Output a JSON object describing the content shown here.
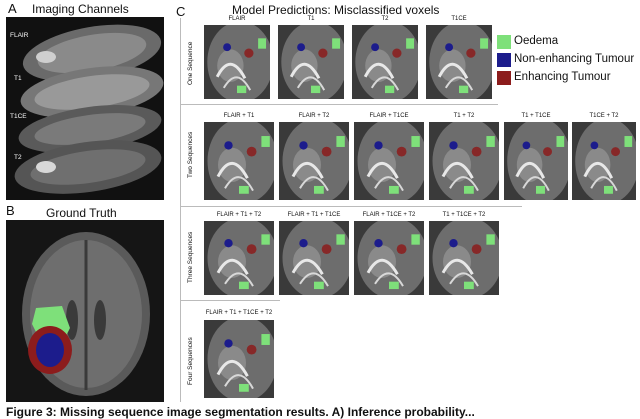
{
  "panelA": {
    "letter": "A",
    "title": "Imaging Channels",
    "channels": [
      "FLAIR",
      "T1",
      "T1CE",
      "T2"
    ]
  },
  "panelB": {
    "letter": "B",
    "title": "Ground Truth"
  },
  "panelC": {
    "letter": "C",
    "title": "Model Predictions: Misclassified voxels",
    "rows": [
      {
        "label": "One Sequence",
        "tiles": [
          "FLAIR",
          "T1",
          "T2",
          "T1CE"
        ]
      },
      {
        "label": "Two Sequences",
        "tiles": [
          "FLAIR + T1",
          "FLAIR + T2",
          "FLAIR + T1CE",
          "T1 + T2",
          "T1 + T1CE",
          "T1CE + T2"
        ]
      },
      {
        "label": "Three Sequences",
        "tiles": [
          "FLAIR + T1 + T2",
          "FLAIR + T1 + T1CE",
          "FLAIR + T1CE + T2",
          "T1 + T1CE + T2"
        ]
      },
      {
        "label": "Four Sequences",
        "tiles": [
          "FLAIR + T1 + T1CE + T2"
        ]
      }
    ]
  },
  "legend": [
    {
      "label": "Oedema",
      "color": "#7ee07a"
    },
    {
      "label": "Non-enhancing Tumour",
      "color": "#1c1c8c"
    },
    {
      "label": "Enhancing Tumour",
      "color": "#8c1c1c"
    }
  ],
  "caption": "Figure 3: Missing sequence image segmentation results. A) Inference probability..."
}
